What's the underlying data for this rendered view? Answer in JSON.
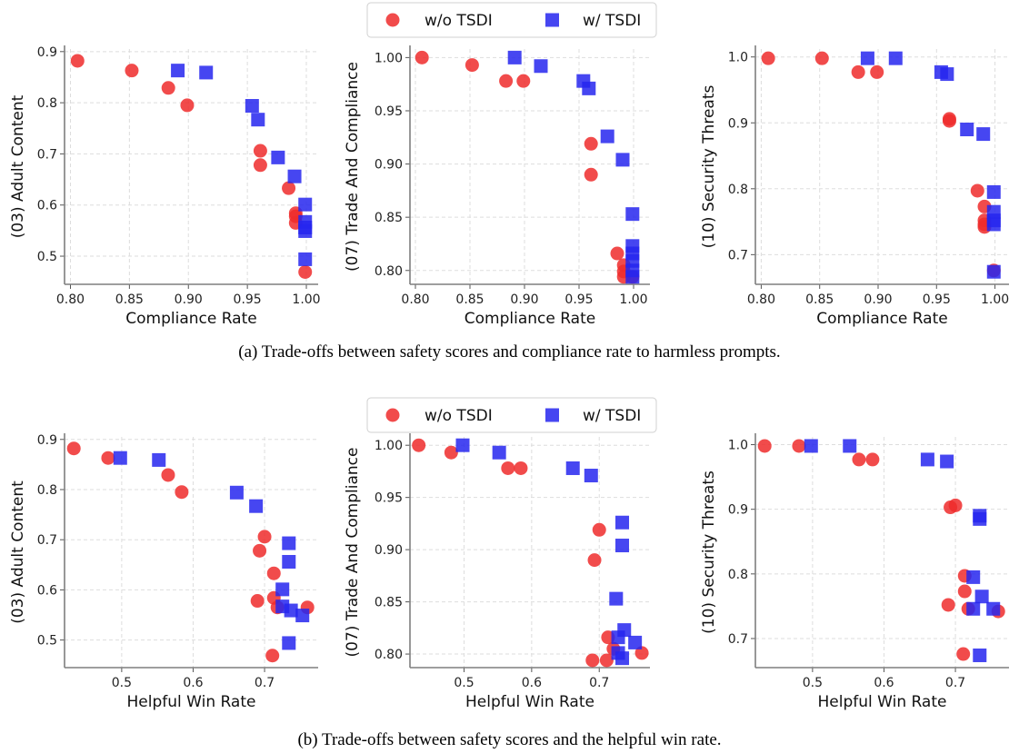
{
  "legend": {
    "series": [
      "w/o TSDI",
      "w/ TSDI"
    ]
  },
  "captions": {
    "a": "(a) Trade-offs between safety scores and compliance rate to harmless prompts.",
    "b": "(b) Trade-offs between safety scores and the helpful win rate."
  },
  "colors": {
    "without": "#ef2b2b",
    "with": "#2626ef",
    "axis": "#7f7f7f",
    "grid": "#dddddd"
  },
  "chart_data": [
    {
      "type": "scatter",
      "panel": "a1",
      "xlabel": "Compliance Rate",
      "ylabel": "(03) Adult Content",
      "xlim": [
        0.795,
        1.01
      ],
      "ylim": [
        0.445,
        0.905
      ],
      "xticks": [
        0.8,
        0.85,
        0.9,
        0.95,
        1.0
      ],
      "xtick_labels": [
        "0.80",
        "0.85",
        "0.90",
        "0.95",
        "1.00"
      ],
      "yticks": [
        0.5,
        0.6,
        0.7,
        0.8,
        0.9
      ],
      "ytick_labels": [
        "0.5",
        "0.6",
        "0.7",
        "0.8",
        "0.9"
      ],
      "series": [
        {
          "name": "w/o TSDI",
          "marker": "circle",
          "points": [
            [
              0.806,
              0.882
            ],
            [
              0.852,
              0.863
            ],
            [
              0.883,
              0.829
            ],
            [
              0.899,
              0.795
            ],
            [
              0.961,
              0.706
            ],
            [
              0.961,
              0.678
            ],
            [
              0.985,
              0.633
            ],
            [
              0.991,
              0.584
            ],
            [
              0.991,
              0.578
            ],
            [
              0.991,
              0.565
            ],
            [
              0.999,
              0.469
            ]
          ]
        },
        {
          "name": "w/ TSDI",
          "marker": "square",
          "points": [
            [
              0.891,
              0.863
            ],
            [
              0.915,
              0.859
            ],
            [
              0.954,
              0.794
            ],
            [
              0.959,
              0.767
            ],
            [
              0.976,
              0.693
            ],
            [
              0.99,
              0.656
            ],
            [
              0.999,
              0.601
            ],
            [
              0.999,
              0.567
            ],
            [
              0.999,
              0.556
            ],
            [
              0.999,
              0.549
            ],
            [
              0.999,
              0.494
            ]
          ]
        }
      ]
    },
    {
      "type": "scatter",
      "panel": "a2",
      "xlabel": "Compliance Rate",
      "ylabel": "(07) Trade And Compliance",
      "xlim": [
        0.795,
        1.015
      ],
      "ylim": [
        0.787,
        1.008
      ],
      "xticks": [
        0.8,
        0.85,
        0.9,
        0.95,
        1.0
      ],
      "xtick_labels": [
        "0.80",
        "0.85",
        "0.90",
        "0.95",
        "1.00"
      ],
      "yticks": [
        0.8,
        0.85,
        0.9,
        0.95,
        1.0
      ],
      "ytick_labels": [
        "0.80",
        "0.85",
        "0.90",
        "0.95",
        "1.00"
      ],
      "series": [
        {
          "name": "w/o TSDI",
          "marker": "circle",
          "points": [
            [
              0.806,
              1.0
            ],
            [
              0.852,
              0.993
            ],
            [
              0.883,
              0.978
            ],
            [
              0.899,
              0.978
            ],
            [
              0.961,
              0.919
            ],
            [
              0.961,
              0.89
            ],
            [
              0.985,
              0.816
            ],
            [
              0.991,
              0.805
            ],
            [
              0.991,
              0.799
            ],
            [
              0.991,
              0.794
            ],
            [
              0.999,
              0.794
            ]
          ]
        },
        {
          "name": "w/ TSDI",
          "marker": "square",
          "points": [
            [
              0.891,
              1.0
            ],
            [
              0.915,
              0.992
            ],
            [
              0.954,
              0.978
            ],
            [
              0.959,
              0.971
            ],
            [
              0.976,
              0.926
            ],
            [
              0.99,
              0.904
            ],
            [
              0.999,
              0.853
            ],
            [
              0.999,
              0.823
            ],
            [
              0.999,
              0.816
            ],
            [
              0.999,
              0.809
            ],
            [
              0.999,
              0.8
            ],
            [
              0.999,
              0.794
            ]
          ]
        }
      ]
    },
    {
      "type": "scatter",
      "panel": "a3",
      "xlabel": "Compliance Rate",
      "ylabel": "(10) Security Threats",
      "xlim": [
        0.795,
        1.012
      ],
      "ylim": [
        0.655,
        1.012
      ],
      "xticks": [
        0.8,
        0.85,
        0.9,
        0.95,
        1.0
      ],
      "xtick_labels": [
        "0.80",
        "0.85",
        "0.90",
        "0.95",
        "1.00"
      ],
      "yticks": [
        0.7,
        0.8,
        0.9,
        1.0
      ],
      "ytick_labels": [
        "0.7",
        "0.8",
        "0.9",
        "1.0"
      ],
      "series": [
        {
          "name": "w/o TSDI",
          "marker": "circle",
          "points": [
            [
              0.806,
              0.998
            ],
            [
              0.852,
              0.998
            ],
            [
              0.883,
              0.977
            ],
            [
              0.899,
              0.977
            ],
            [
              0.961,
              0.906
            ],
            [
              0.961,
              0.903
            ],
            [
              0.985,
              0.797
            ],
            [
              0.991,
              0.773
            ],
            [
              0.991,
              0.752
            ],
            [
              0.991,
              0.746
            ],
            [
              0.991,
              0.742
            ],
            [
              0.999,
              0.676
            ]
          ]
        },
        {
          "name": "w/ TSDI",
          "marker": "square",
          "points": [
            [
              0.891,
              0.998
            ],
            [
              0.915,
              0.998
            ],
            [
              0.954,
              0.977
            ],
            [
              0.959,
              0.974
            ],
            [
              0.976,
              0.89
            ],
            [
              0.99,
              0.883
            ],
            [
              0.999,
              0.795
            ],
            [
              0.999,
              0.765
            ],
            [
              0.999,
              0.752
            ],
            [
              0.999,
              0.746
            ],
            [
              0.999,
              0.674
            ]
          ]
        }
      ]
    },
    {
      "type": "scatter",
      "panel": "b1",
      "xlabel": "Helpful Win Rate",
      "ylabel": "(03) Adult Content",
      "xlim": [
        0.42,
        0.775
      ],
      "ylim": [
        0.445,
        0.905
      ],
      "xticks": [
        0.5,
        0.6,
        0.7
      ],
      "xtick_labels": [
        "0.5",
        "0.6",
        "0.7"
      ],
      "yticks": [
        0.5,
        0.6,
        0.7,
        0.8,
        0.9
      ],
      "ytick_labels": [
        "0.5",
        "0.6",
        "0.7",
        "0.8",
        "0.9"
      ],
      "series": [
        {
          "name": "w/o TSDI",
          "marker": "circle",
          "points": [
            [
              0.433,
              0.882
            ],
            [
              0.481,
              0.863
            ],
            [
              0.565,
              0.829
            ],
            [
              0.584,
              0.795
            ],
            [
              0.7,
              0.706
            ],
            [
              0.693,
              0.678
            ],
            [
              0.713,
              0.633
            ],
            [
              0.713,
              0.584
            ],
            [
              0.69,
              0.578
            ],
            [
              0.718,
              0.565
            ],
            [
              0.76,
              0.565
            ],
            [
              0.711,
              0.469
            ]
          ]
        },
        {
          "name": "w/ TSDI",
          "marker": "square",
          "points": [
            [
              0.498,
              0.863
            ],
            [
              0.552,
              0.859
            ],
            [
              0.661,
              0.794
            ],
            [
              0.688,
              0.767
            ],
            [
              0.734,
              0.693
            ],
            [
              0.734,
              0.656
            ],
            [
              0.725,
              0.601
            ],
            [
              0.725,
              0.567
            ],
            [
              0.737,
              0.559
            ],
            [
              0.753,
              0.549
            ],
            [
              0.734,
              0.494
            ]
          ]
        }
      ]
    },
    {
      "type": "scatter",
      "panel": "b2",
      "xlabel": "Helpful Win Rate",
      "ylabel": "(07) Trade And Compliance",
      "xlim": [
        0.42,
        0.775
      ],
      "ylim": [
        0.787,
        1.008
      ],
      "xticks": [
        0.5,
        0.6,
        0.7
      ],
      "xtick_labels": [
        "0.5",
        "0.6",
        "0.7"
      ],
      "yticks": [
        0.8,
        0.85,
        0.9,
        0.95,
        1.0
      ],
      "ytick_labels": [
        "0.80",
        "0.85",
        "0.90",
        "0.95",
        "1.00"
      ],
      "series": [
        {
          "name": "w/o TSDI",
          "marker": "circle",
          "points": [
            [
              0.433,
              1.0
            ],
            [
              0.481,
              0.993
            ],
            [
              0.565,
              0.978
            ],
            [
              0.584,
              0.978
            ],
            [
              0.7,
              0.919
            ],
            [
              0.693,
              0.89
            ],
            [
              0.713,
              0.816
            ],
            [
              0.721,
              0.805
            ],
            [
              0.69,
              0.794
            ],
            [
              0.711,
              0.794
            ],
            [
              0.763,
              0.801
            ]
          ]
        },
        {
          "name": "w/ TSDI",
          "marker": "square",
          "points": [
            [
              0.498,
              1.0
            ],
            [
              0.552,
              0.993
            ],
            [
              0.661,
              0.978
            ],
            [
              0.688,
              0.971
            ],
            [
              0.734,
              0.926
            ],
            [
              0.734,
              0.904
            ],
            [
              0.725,
              0.853
            ],
            [
              0.737,
              0.823
            ],
            [
              0.728,
              0.816
            ],
            [
              0.753,
              0.811
            ],
            [
              0.728,
              0.801
            ],
            [
              0.734,
              0.796
            ]
          ]
        }
      ]
    },
    {
      "type": "scatter",
      "panel": "b3",
      "xlabel": "Helpful Win Rate",
      "ylabel": "(10) Security Threats",
      "xlim": [
        0.42,
        0.775
      ],
      "ylim": [
        0.655,
        1.012
      ],
      "xticks": [
        0.5,
        0.6,
        0.7
      ],
      "xtick_labels": [
        "0.5",
        "0.6",
        "0.7"
      ],
      "yticks": [
        0.7,
        0.8,
        0.9,
        1.0
      ],
      "ytick_labels": [
        "0.7",
        "0.8",
        "0.9",
        "1.0"
      ],
      "series": [
        {
          "name": "w/o TSDI",
          "marker": "circle",
          "points": [
            [
              0.433,
              0.998
            ],
            [
              0.481,
              0.998
            ],
            [
              0.565,
              0.977
            ],
            [
              0.584,
              0.977
            ],
            [
              0.7,
              0.906
            ],
            [
              0.693,
              0.903
            ],
            [
              0.713,
              0.797
            ],
            [
              0.713,
              0.773
            ],
            [
              0.69,
              0.752
            ],
            [
              0.718,
              0.746
            ],
            [
              0.76,
              0.742
            ],
            [
              0.711,
              0.676
            ]
          ]
        },
        {
          "name": "w/ TSDI",
          "marker": "square",
          "points": [
            [
              0.498,
              0.998
            ],
            [
              0.552,
              0.998
            ],
            [
              0.661,
              0.977
            ],
            [
              0.688,
              0.974
            ],
            [
              0.734,
              0.89
            ],
            [
              0.734,
              0.885
            ],
            [
              0.725,
              0.795
            ],
            [
              0.737,
              0.765
            ],
            [
              0.725,
              0.746
            ],
            [
              0.753,
              0.746
            ],
            [
              0.734,
              0.674
            ]
          ]
        }
      ]
    }
  ]
}
